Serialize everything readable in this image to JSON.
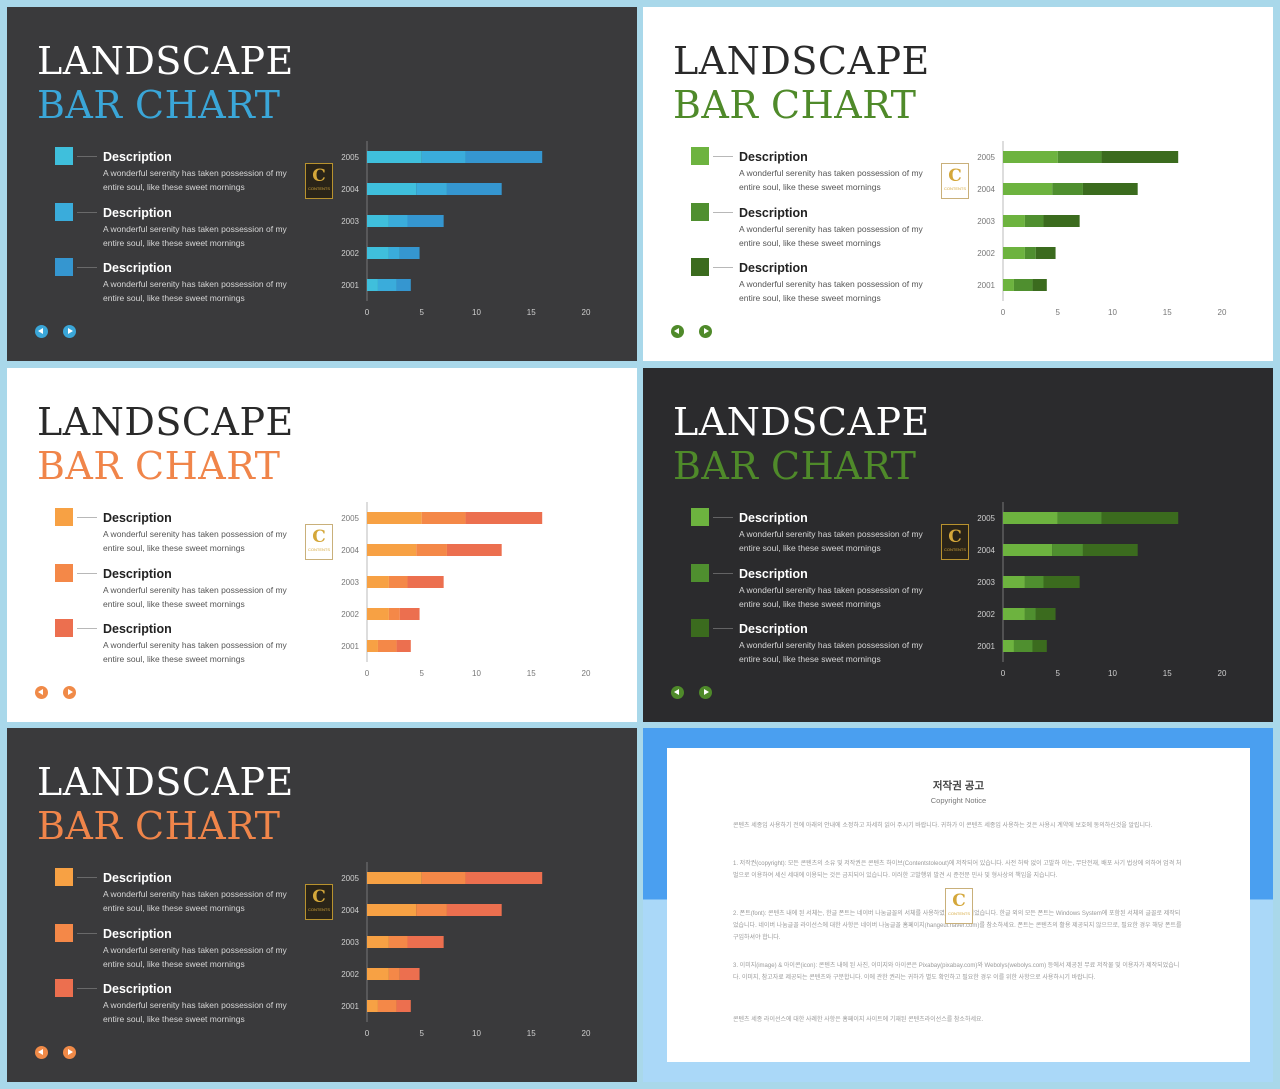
{
  "slides": [
    {
      "variant": "dark",
      "title1": "LANDSCAPE",
      "title2": "BAR CHART",
      "accent": "#3aa6d8",
      "segments": [
        "#3fbfdc",
        "#3aacdb",
        "#3596d0"
      ],
      "markers": [
        "#3fbfdc",
        "#3aacdb",
        "#3596d0"
      ],
      "nav": "#3aa6d8"
    },
    {
      "variant": "light",
      "title1": "LANDSCAPE",
      "title2": "BAR CHART",
      "accent": "#4f8a2a",
      "segments": [
        "#6db33f",
        "#4f8f2f",
        "#3b6b1e"
      ],
      "markers": [
        "#6db33f",
        "#4f8f2f",
        "#3b6b1e"
      ],
      "nav": "#4f8a2a"
    },
    {
      "variant": "light",
      "title1": "LANDSCAPE",
      "title2": "BAR CHART",
      "accent": "#f0854a",
      "segments": [
        "#f7a144",
        "#f48848",
        "#ec6f4f"
      ],
      "markers": [
        "#f7a144",
        "#f48848",
        "#ec6f4f"
      ],
      "nav": "#f08a48"
    },
    {
      "variant": "darker",
      "title1": "LANDSCAPE",
      "title2": "BAR CHART",
      "accent": "#4f8a2a",
      "segments": [
        "#6db33f",
        "#4f8f2f",
        "#3b6b1e"
      ],
      "markers": [
        "#6db33f",
        "#4f8f2f",
        "#3b6b1e"
      ],
      "nav": "#4f8a2a"
    },
    {
      "variant": "dark",
      "title1": "LANDSCAPE",
      "title2": "BAR CHART",
      "accent": "#f0854a",
      "segments": [
        "#f7a144",
        "#f48848",
        "#ec6f4f"
      ],
      "markers": [
        "#f7a144",
        "#f48848",
        "#ec6f4f"
      ],
      "nav": "#f08a48"
    }
  ],
  "legend": [
    {
      "heading": "Description",
      "text": "A wonderful serenity has taken possession of my entire soul, like these sweet mornings"
    },
    {
      "heading": "Description",
      "text": "A wonderful serenity has taken possession of my entire soul, like these sweet mornings"
    },
    {
      "heading": "Description",
      "text": "A wonderful serenity has taken possession of my entire soul, like these sweet mornings"
    }
  ],
  "logo": {
    "letter": "C",
    "caption": "CONTENTS"
  },
  "chart_data": {
    "type": "bar",
    "orientation": "horizontal",
    "stacked": true,
    "categories": [
      "2005",
      "2004",
      "2003",
      "2002",
      "2001"
    ],
    "series": [
      {
        "values": [
          5,
          4.5,
          2,
          2,
          1
        ]
      },
      {
        "values": [
          4,
          2.8,
          1.7,
          1,
          1.7
        ]
      },
      {
        "values": [
          7,
          5,
          3.3,
          1.8,
          1.3
        ]
      }
    ],
    "xticks": [
      "0",
      "5",
      "10",
      "15",
      "20"
    ],
    "xlim": [
      0,
      20
    ]
  },
  "notice": {
    "title": "저작권 공고",
    "subtitle": "Copyright Notice",
    "paragraphs": [
      "콘텐츠 세종입 사용하기 전에 아래의 안내에 소정하고 자세히 읽어 주시기 바랍니다. 귀하가 이 콘텐츠 세종입 사용하는 것은 사용시 계약에 보호에 동의하신것을 알립니다.",
      "1. 저작권(copyright): 모든 콘텐츠의 소유 및 저작권은 콘텐츠 하이브(Contentstoleout)에 저작되어 있습니다. 사전 허락 없이 고발하 이는, 무단전재, 배포 사기 법상에 의하여 엄격 처벌으로 이용하여 세신 세대에 이용되는 것은 금지되어 있습니다. 이러한 고발행위 발견 시 준전문 민사 및 형사상의 책임을 지습니다.",
      "2. 폰트(font): 콘텐츠 내에 된 서체는, 한글 폰트는 네이버 나눔글꼴의 서체를 사용하였으며 세계되었습니다. 한글 외의 모든 폰트는 Windows System에 포함된 서체의 글꼴로 제작되었습니다. 네이버 나눔글꼴 라이선스에 대한 사항은 네이버 나눔글꼴 홈페이지(hangeul.naver.com)를 참소하세요. 폰트는 콘텐츠의 활용 제공되지 않으므로, 필요한 경우 해당 폰트를 구입하셔야 합니다.",
      "3. 이미지(image) & 아이콘(icon): 콘텐츠 내에 된 사진, 이미지와 아이콘은 Pixabay(pixabay.com)와 Webolys(webolys.com) 등에서 제공된 무료 저작물 및 이용자가 제작되었습니다. 이미지, 참고자료 제공되는 콘텐츠와 구분합니다. 이에 관한 권리는 귀하가 별도 확인하고 필요한 경우 이를 위한 사항으로 사용하시기 바랍니다.",
      "콘텐츠 세종 라이선스에 대한 사례한 사항은 홈페이지 사이트에 기재된 콘텐츠라이선스를 참소하세요."
    ]
  }
}
